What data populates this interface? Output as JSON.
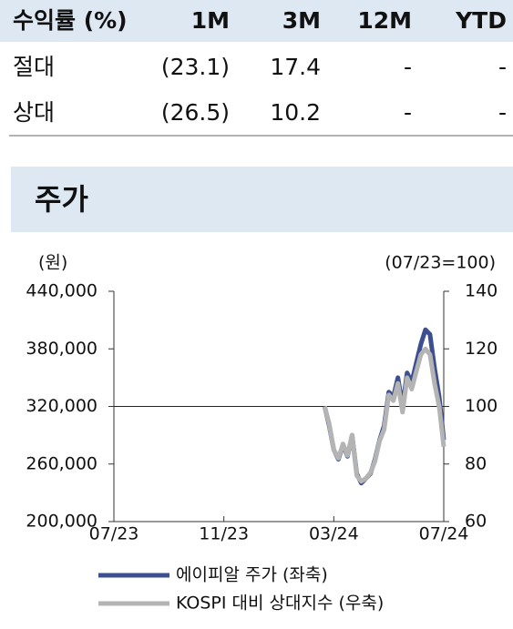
{
  "table": {
    "header": [
      "수익률 (%)",
      "1M",
      "3M",
      "12M",
      "YTD"
    ],
    "rows": [
      [
        "절대",
        "(23.1)",
        "17.4",
        "-",
        "-"
      ],
      [
        "상대",
        "(26.5)",
        "10.2",
        "-",
        "-"
      ]
    ]
  },
  "section_title": "주가",
  "chart_data": {
    "type": "line",
    "y_label": "(원)",
    "y2_label": "(07/23=100)",
    "categories": [
      "07/23",
      null,
      null,
      null,
      null,
      null,
      null,
      null,
      null,
      null,
      null,
      null,
      null,
      null,
      null,
      null,
      null,
      null,
      null,
      null,
      null,
      null,
      null,
      null,
      "11/23",
      null,
      null,
      null,
      null,
      null,
      null,
      null,
      null,
      null,
      null,
      null,
      null,
      null,
      null,
      null,
      null,
      null,
      null,
      null,
      null,
      null,
      null,
      null,
      "03/24",
      null,
      null,
      null,
      null,
      null,
      null,
      null,
      null,
      null,
      null,
      null,
      null,
      null,
      null,
      null,
      null,
      null,
      null,
      null,
      null,
      null,
      null,
      null,
      "07/24"
    ],
    "series": [
      {
        "name": "에이피알 주가 (좌축)",
        "color": "#3d4f8f",
        "axis": "y",
        "values": [
          null,
          null,
          null,
          null,
          null,
          null,
          null,
          null,
          null,
          null,
          null,
          null,
          null,
          null,
          null,
          null,
          null,
          null,
          null,
          null,
          null,
          null,
          null,
          null,
          null,
          null,
          null,
          null,
          null,
          null,
          null,
          null,
          null,
          null,
          null,
          null,
          null,
          null,
          null,
          null,
          null,
          null,
          null,
          null,
          null,
          null,
          320000,
          300000,
          275000,
          265000,
          280000,
          268000,
          290000,
          250000,
          240000,
          245000,
          250000,
          265000,
          285000,
          300000,
          335000,
          330000,
          350000,
          320000,
          355000,
          345000,
          365000,
          385000,
          400000,
          395000,
          360000,
          330000,
          285000
        ]
      },
      {
        "name": "KOSPI 대비 상대지수 (우축)",
        "color": "#b4b4b4",
        "axis": "y2",
        "values": [
          null,
          null,
          null,
          null,
          null,
          null,
          null,
          null,
          null,
          null,
          null,
          null,
          null,
          null,
          null,
          null,
          null,
          null,
          null,
          null,
          null,
          null,
          null,
          null,
          null,
          null,
          null,
          null,
          null,
          null,
          null,
          null,
          null,
          null,
          null,
          null,
          null,
          null,
          null,
          null,
          null,
          null,
          null,
          null,
          null,
          null,
          100,
          94,
          85,
          82,
          87,
          83,
          90,
          76,
          74,
          75,
          77,
          81,
          88,
          92,
          104,
          102,
          108,
          98,
          110,
          106,
          112,
          118,
          120,
          118,
          108,
          100,
          86
        ]
      }
    ],
    "ylim": [
      200000,
      440000
    ],
    "yticks": [
      {
        "value": 200000,
        "label": "200,000"
      },
      {
        "value": 260000,
        "label": "260,000"
      },
      {
        "value": 320000,
        "label": "320,000"
      },
      {
        "value": 380000,
        "label": "380,000"
      },
      {
        "value": 440000,
        "label": "440,000"
      }
    ],
    "y2lim": [
      60,
      140
    ],
    "y2ticks": [
      60,
      80,
      100,
      120,
      140
    ],
    "reference_line": {
      "axis": "y2",
      "value": 100
    }
  }
}
